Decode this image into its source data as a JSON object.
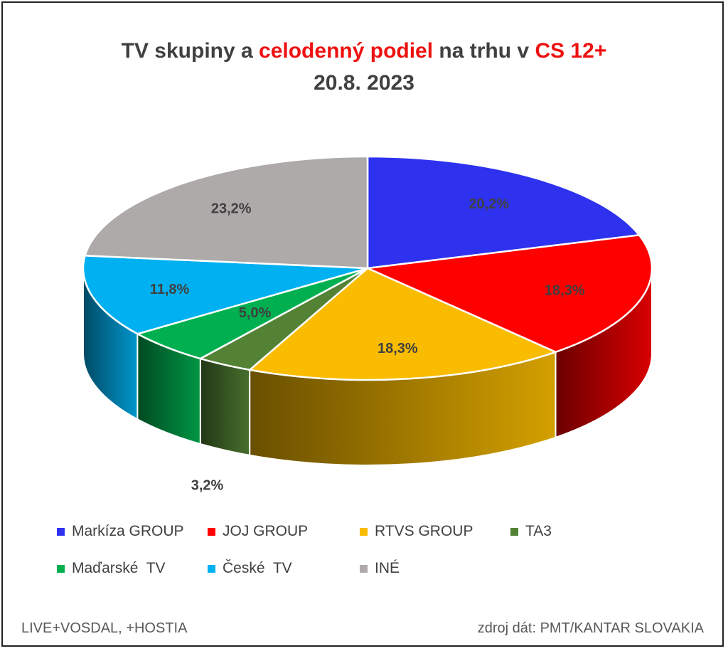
{
  "title": {
    "part1": "TV skupiny a ",
    "part2": "celodenný podiel",
    "part3": " na trhu v ",
    "part4": "CS 12+",
    "line2": "20.8. 2023"
  },
  "chart_data": {
    "type": "pie",
    "style": "3d",
    "slices": [
      {
        "name": "Markíza GROUP",
        "value": 20.2,
        "label": "20,2%",
        "color": "#2e32ee"
      },
      {
        "name": "JOJ GROUP",
        "value": 18.3,
        "label": "18,3%",
        "color": "#ff0000"
      },
      {
        "name": "RTVS GROUP",
        "value": 18.3,
        "label": "18,3%",
        "color": "#f9bc00"
      },
      {
        "name": "TA3",
        "value": 3.2,
        "label": "3,2%",
        "color": "#548235"
      },
      {
        "name": "Maďarské  TV",
        "value": 5.0,
        "label": "5,0%",
        "color": "#00b050"
      },
      {
        "name": "České  TV",
        "value": 11.8,
        "label": "11,8%",
        "color": "#00b0f0"
      },
      {
        "name": "INÉ",
        "value": 23.2,
        "label": "23,2%",
        "color": "#aeaaaa"
      }
    ],
    "legend_position": "bottom"
  },
  "footer": {
    "left": "LIVE+VOSDAL, +HOSTIA",
    "right": "zdroj dát: PMT/KANTAR SLOVAKIA"
  }
}
